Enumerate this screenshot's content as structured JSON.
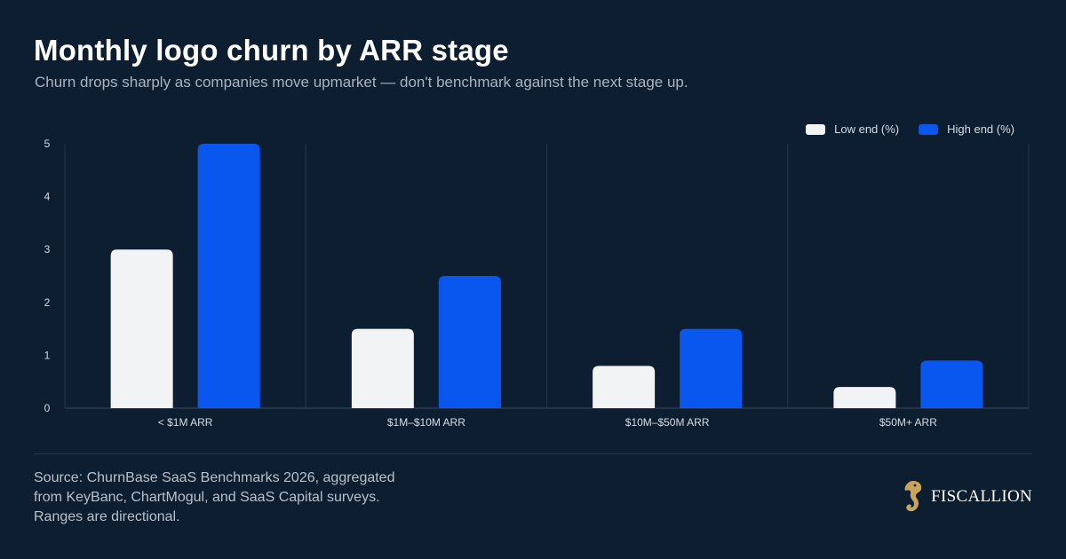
{
  "title": "Monthly logo churn by ARR stage",
  "subtitle": "Churn drops sharply as companies move upmarket — don't benchmark against the next stage up.",
  "legend": {
    "low_label": "Low end (%)",
    "high_label": "High end (%)"
  },
  "colors": {
    "background": "#0d1e30",
    "low": "#f1f3f5",
    "high": "#0a57ef",
    "grid": "#243446",
    "axis_text": "#d6dde5"
  },
  "chart_data": {
    "type": "bar",
    "categories": [
      "< $1M ARR",
      "$1M–$10M ARR",
      "$10M–$50M ARR",
      "$50M+ ARR"
    ],
    "series": [
      {
        "name": "Low end (%)",
        "values": [
          3,
          1.5,
          0.8,
          0.4
        ]
      },
      {
        "name": "High end (%)",
        "values": [
          5,
          2.5,
          1.5,
          0.9
        ]
      }
    ],
    "ylim": [
      0,
      5
    ],
    "yticks": [
      "0",
      "1",
      "2",
      "3",
      "4",
      "5"
    ],
    "legend_position": "top-right",
    "grid": "vertical category separators"
  },
  "footer": {
    "source_lines": [
      "Source: ChurnBase SaaS Benchmarks 2026, aggregated",
      "from KeyBanc, ChartMogul, and SaaS Capital surveys.",
      "Ranges are directional."
    ],
    "brand_name": "FISCALLION",
    "brand_icon": "seahorse-logo-icon"
  }
}
